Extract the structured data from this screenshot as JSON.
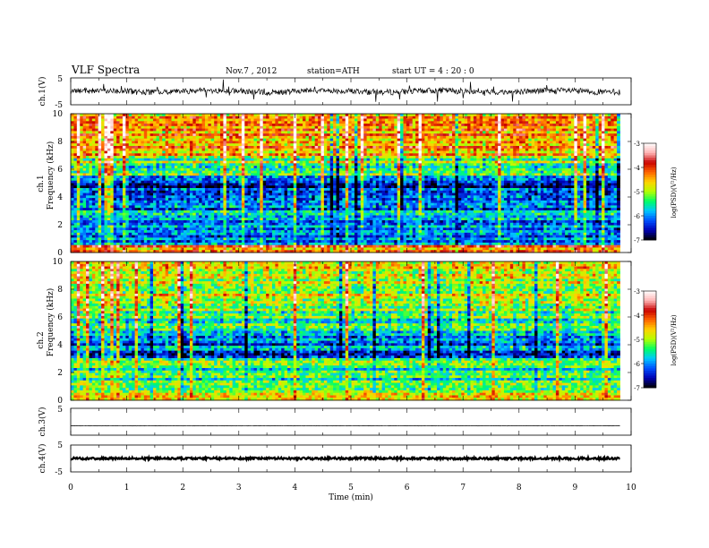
{
  "header": {
    "title": "VLF  Spectra",
    "date": "Nov.7  , 2012",
    "station": "station=ATH",
    "start": "start  UT  =   4  : 20 : 0"
  },
  "colors": {
    "colormap": [
      "#000000",
      "#0000b4",
      "#0050ff",
      "#00c8ff",
      "#00ff64",
      "#b4ff00",
      "#ffd200",
      "#ff6400",
      "#c80000",
      "#ffb4b4",
      "#ffffff"
    ],
    "trace": "#000000",
    "axis": "#000000"
  },
  "chart_data": [
    {
      "id": "ch1-waveform",
      "type": "line",
      "ylabel": "ch.1(V)",
      "ylim": [
        -5,
        5
      ],
      "y_ticks": [
        "5",
        "-5"
      ],
      "x_range_min": [
        0,
        9.8
      ],
      "baseline_v": 0,
      "description": "noisy broadband waveform, typical amplitude about ±1.5 V with spikes to ±4 V"
    },
    {
      "id": "ch1-spectrogram",
      "type": "heatmap",
      "ylabel_top": "ch.1",
      "ylabel": "Frequency  (kHz)",
      "ylim": [
        0,
        10
      ],
      "y_ticks": [
        "0",
        "2",
        "4",
        "6",
        "8",
        "10"
      ],
      "x_range_min": [
        0,
        9.8
      ],
      "colorbar": {
        "label": "log(PSD)(V²/Hz)",
        "range": [
          -7,
          -3
        ],
        "ticks": [
          "-3",
          "-4",
          "-5",
          "-6",
          "-7"
        ]
      },
      "band_profile": [
        {
          "f_khz": [
            0,
            0.5
          ],
          "log_psd": -4.2
        },
        {
          "f_khz": [
            0.5,
            3.5
          ],
          "log_psd": -6.0
        },
        {
          "f_khz": [
            3.5,
            5.5
          ],
          "log_psd": -6.4
        },
        {
          "f_khz": [
            5.5,
            7.0
          ],
          "log_psd": -5.2
        },
        {
          "f_khz": [
            7.0,
            10
          ],
          "log_psd": -4.3
        }
      ]
    },
    {
      "id": "ch2-spectrogram",
      "type": "heatmap",
      "ylabel_top": "ch.2",
      "ylabel": "Frequency  (kHz)",
      "ylim": [
        0,
        10
      ],
      "y_ticks": [
        "0",
        "2",
        "4",
        "6",
        "8",
        "10"
      ],
      "x_range_min": [
        0,
        9.8
      ],
      "colorbar": {
        "label": "log(PSD)(V²/Hz)",
        "range": [
          -7,
          -3
        ],
        "ticks": [
          "-3",
          "-4",
          "-5",
          "-6",
          "-7"
        ]
      },
      "band_profile": [
        {
          "f_khz": [
            0,
            0.5
          ],
          "log_psd": -4.5
        },
        {
          "f_khz": [
            0.5,
            3.0
          ],
          "log_psd": -5.4
        },
        {
          "f_khz": [
            3.0,
            5.0
          ],
          "log_psd": -6.1
        },
        {
          "f_khz": [
            5.0,
            7.0
          ],
          "log_psd": -5.3
        },
        {
          "f_khz": [
            7.0,
            10
          ],
          "log_psd": -4.8
        }
      ]
    },
    {
      "id": "ch3-waveform",
      "type": "line",
      "ylabel": "ch.3(V)",
      "ylim": [
        -5,
        5
      ],
      "y_ticks": [
        "5"
      ],
      "x_range_min": [
        0,
        9.8
      ],
      "baseline_v": -1.5,
      "description": "nearly flat trace"
    },
    {
      "id": "ch4-waveform",
      "type": "line",
      "ylabel": "ch.4(V)",
      "ylim": [
        -5,
        5
      ],
      "y_ticks": [
        "5",
        "-5"
      ],
      "x_range_min": [
        0,
        9.8
      ],
      "baseline_v": 0,
      "description": "flat thick trace"
    }
  ],
  "x_axis": {
    "label": "Time  (min)",
    "range": [
      0,
      10
    ],
    "ticks": [
      "0",
      "1",
      "2",
      "3",
      "4",
      "5",
      "6",
      "7",
      "8",
      "9",
      "10"
    ]
  }
}
